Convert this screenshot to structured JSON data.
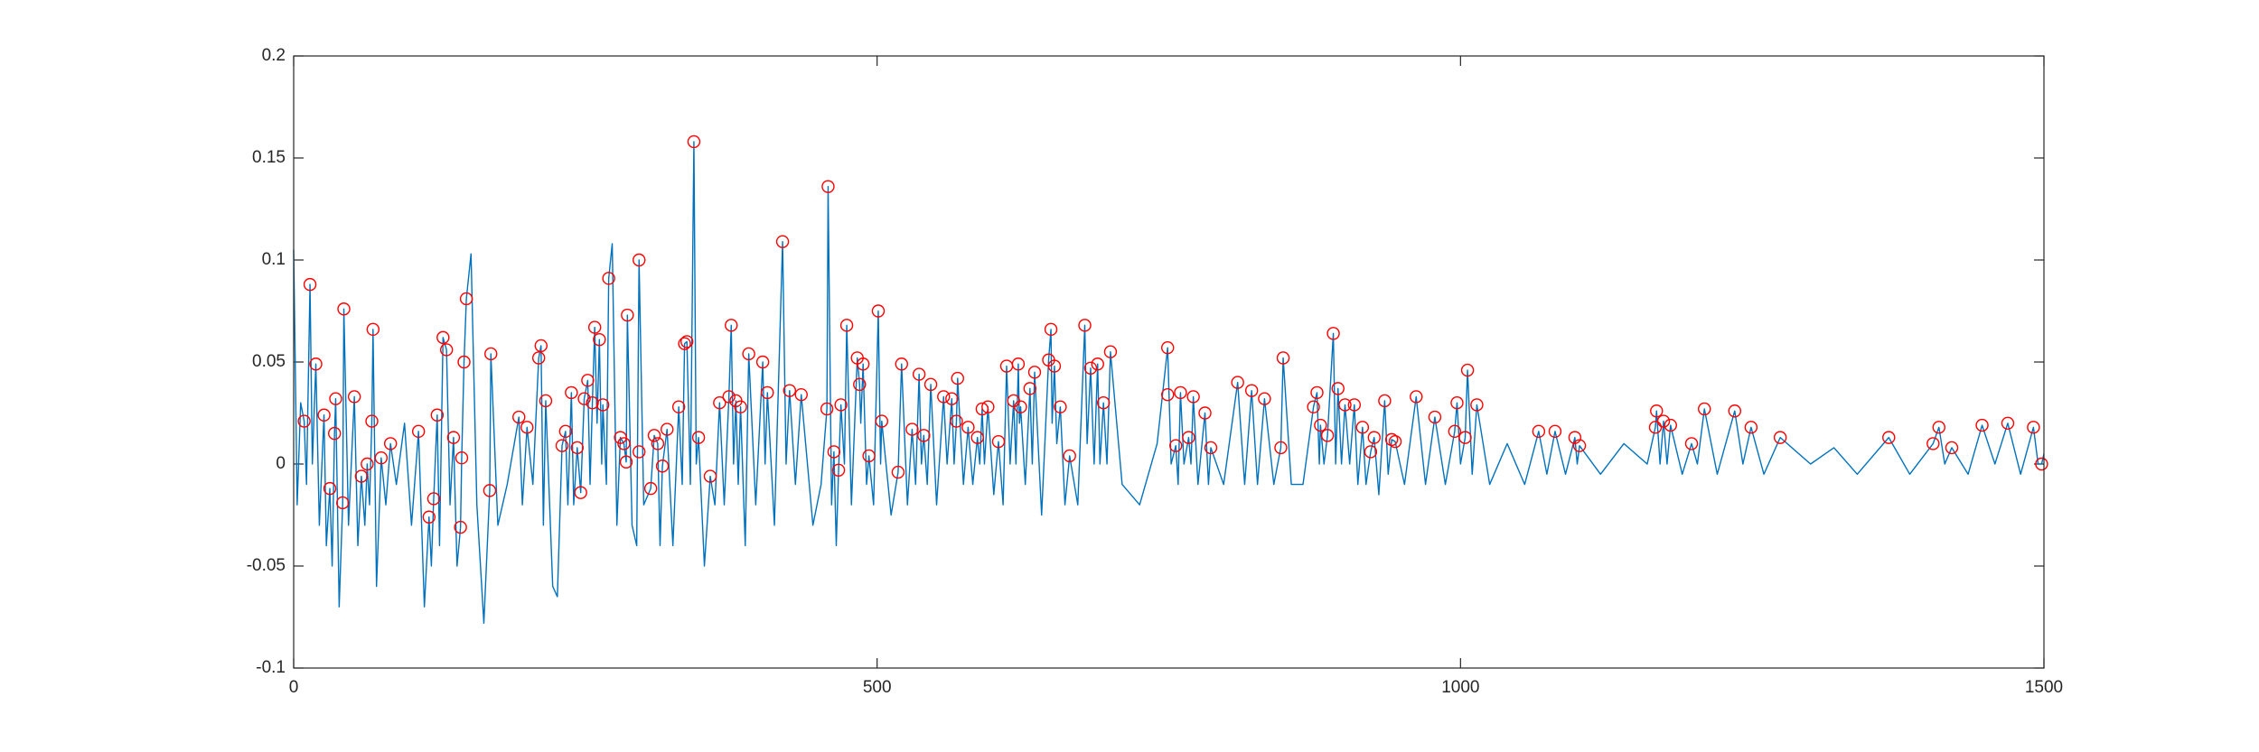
{
  "chart_data": {
    "type": "line",
    "xlim": [
      0,
      1500
    ],
    "ylim": [
      -0.1,
      0.2
    ],
    "xticks": [
      0,
      500,
      1000,
      1500
    ],
    "yticks": [
      -0.1,
      -0.05,
      0,
      0.05,
      0.1,
      0.15,
      0.2
    ],
    "grid": false,
    "series": [
      {
        "color": "#0072bd",
        "marker": "none",
        "x": [
          0,
          3,
          6,
          9,
          11,
          14,
          16,
          19,
          22,
          26,
          28,
          31,
          33,
          35,
          36,
          39,
          42,
          43,
          47,
          52,
          55,
          58,
          61,
          63,
          65,
          67,
          68,
          71,
          75,
          79,
          83,
          88,
          95,
          101,
          107,
          112,
          116,
          118,
          120,
          123,
          125,
          128,
          131,
          134,
          137,
          140,
          143,
          144,
          146,
          148,
          152,
          157,
          163,
          168,
          169,
          175,
          183,
          193,
          196,
          200,
          205,
          210,
          212,
          214,
          216,
          222,
          226,
          230,
          233,
          235,
          238,
          240,
          243,
          246,
          249,
          252,
          254,
          256,
          258,
          260,
          262,
          264,
          265,
          268,
          270,
          273,
          277,
          280,
          283,
          285,
          286,
          290,
          294,
          296,
          300,
          306,
          309,
          312,
          314,
          316,
          320,
          325,
          330,
          333,
          335,
          337,
          340,
          343,
          345,
          347,
          352,
          357,
          361,
          365,
          369,
          373,
          375,
          377,
          379,
          381,
          383,
          387,
          390,
          396,
          402,
          404,
          406,
          412,
          419,
          422,
          425,
          430,
          435,
          445,
          452,
          457,
          458,
          461,
          463,
          465,
          467,
          469,
          472,
          474,
          478,
          483,
          485,
          486,
          488,
          491,
          493,
          497,
          501,
          503,
          504,
          512,
          518,
          521,
          526,
          530,
          533,
          536,
          538,
          540,
          543,
          546,
          551,
          557,
          560,
          564,
          566,
          568,
          569,
          574,
          578,
          582,
          586,
          588,
          590,
          592,
          595,
          600,
          604,
          608,
          611,
          614,
          617,
          619,
          621,
          622,
          623,
          627,
          631,
          633,
          635,
          641,
          647,
          649,
          650,
          652,
          654,
          657,
          661,
          665,
          672,
          678,
          680,
          683,
          686,
          689,
          691,
          694,
          697,
          700,
          710,
          725,
          740,
          749,
          752,
          756,
          758,
          760,
          763,
          767,
          769,
          771,
          775,
          781,
          784,
          786,
          797,
          809,
          815,
          821,
          826,
          832,
          840,
          846,
          848,
          855,
          865,
          874,
          877,
          879,
          880,
          883,
          886,
          891,
          893,
          895,
          898,
          901,
          905,
          909,
          912,
          916,
          919,
          923,
          926,
          930,
          935,
          938,
          941,
          944,
          952,
          962,
          970,
          978,
          987,
          995,
          997,
          1000,
          1004,
          1006,
          1010,
          1014,
          1025,
          1040,
          1055,
          1067,
          1074,
          1081,
          1090,
          1098,
          1100,
          1102,
          1120,
          1140,
          1160,
          1167,
          1168,
          1171,
          1174,
          1177,
          1180,
          1190,
          1198,
          1203,
          1209,
          1220,
          1235,
          1242,
          1249,
          1260,
          1274,
          1300,
          1320,
          1340,
          1367,
          1385,
          1405,
          1410,
          1415,
          1421,
          1435,
          1447,
          1458,
          1469,
          1480,
          1491,
          1495,
          1498,
          1500
        ],
        "values": [
          0.105,
          -0.02,
          0.03,
          0.021,
          -0.01,
          0.088,
          0,
          0.049,
          -0.03,
          0.024,
          -0.04,
          -0.012,
          -0.05,
          0.015,
          0.032,
          -0.07,
          -0.019,
          0.076,
          -0.03,
          0.033,
          -0.04,
          -0.006,
          -0.03,
          0,
          -0.02,
          0.021,
          0.066,
          -0.06,
          0.003,
          -0.02,
          0.01,
          -0.01,
          0.02,
          -0.03,
          0.016,
          -0.07,
          -0.026,
          -0.05,
          -0.017,
          0.024,
          -0.04,
          0.062,
          0.056,
          -0.02,
          0.013,
          -0.05,
          -0.031,
          0.003,
          0.05,
          0.081,
          0.103,
          -0.02,
          -0.078,
          -0.013,
          0.054,
          -0.03,
          -0.01,
          0.023,
          -0.02,
          0.018,
          -0.01,
          0.052,
          0.058,
          -0.03,
          0.031,
          -0.06,
          -0.065,
          0.009,
          0.016,
          -0.02,
          0.035,
          -0.02,
          0.008,
          -0.014,
          0.032,
          0.041,
          -0.01,
          0.03,
          0.067,
          0.02,
          0.061,
          0,
          0.029,
          -0.01,
          0.091,
          0.108,
          -0.03,
          0.013,
          0.01,
          0.001,
          0.073,
          -0.03,
          -0.04,
          0.1,
          -0.02,
          -0.012,
          0.014,
          0.01,
          -0.04,
          -0.001,
          0.017,
          -0.04,
          0.028,
          -0.01,
          0.059,
          0.06,
          -0.01,
          0.158,
          0,
          0.013,
          -0.05,
          -0.006,
          -0.02,
          0.03,
          -0.02,
          0.033,
          0.068,
          0,
          0.031,
          -0.01,
          0.028,
          -0.04,
          0.054,
          -0.02,
          0.05,
          0,
          0.035,
          -0.03,
          0.109,
          0,
          0.036,
          -0.01,
          0.034,
          -0.03,
          -0.01,
          0.027,
          0.136,
          -0.02,
          0.006,
          -0.04,
          -0.003,
          0.029,
          0,
          0.068,
          -0.02,
          0.052,
          0.039,
          0.02,
          0.049,
          -0.01,
          0.004,
          -0.02,
          0.075,
          0,
          0.021,
          -0.025,
          -0.004,
          0.049,
          -0.02,
          0.017,
          -0.01,
          0.044,
          0,
          0.014,
          -0.01,
          0.039,
          -0.02,
          0.033,
          0,
          0.032,
          0,
          0.021,
          0.042,
          -0.01,
          0.018,
          -0.01,
          0.013,
          0,
          0.027,
          0,
          0.028,
          -0.015,
          0.011,
          -0.02,
          0.048,
          0,
          0.031,
          0,
          0.049,
          0.02,
          0.028,
          -0.01,
          0.037,
          0,
          0.045,
          -0.025,
          0.051,
          0.066,
          0.02,
          0.048,
          0.01,
          0.028,
          -0.02,
          0.004,
          -0.02,
          0.068,
          0.01,
          0.047,
          0,
          0.049,
          0,
          0.03,
          0,
          0.055,
          -0.01,
          -0.02,
          0.01,
          0.057,
          0,
          0.009,
          -0.01,
          0.035,
          0,
          0.013,
          0,
          0.033,
          -0.01,
          0.025,
          -0.01,
          0.008,
          -0.01,
          0.04,
          -0.01,
          0.036,
          -0.01,
          0.032,
          -0.01,
          0.008,
          0.052,
          -0.01,
          -0.01,
          0.028,
          0.035,
          0,
          0.019,
          0,
          0.014,
          0.064,
          0,
          0.037,
          0,
          0.029,
          0,
          0.029,
          -0.01,
          0.018,
          -0.01,
          0.006,
          0.013,
          -0.015,
          0.031,
          -0.005,
          0.012,
          0.011,
          -0.01,
          0.033,
          -0.01,
          0.023,
          -0.01,
          0.016,
          0.03,
          0,
          0.013,
          0.046,
          -0.005,
          0.029,
          -0.01,
          0.01,
          -0.01,
          0.016,
          -0.005,
          0.016,
          -0.005,
          0.013,
          0,
          0.009,
          -0.005,
          0.01,
          0,
          0.018,
          0.026,
          0,
          0.021,
          0,
          0.019,
          -0.005,
          0.01,
          0,
          0.027,
          -0.005,
          0.026,
          0,
          0.018,
          -0.005,
          0.013,
          0,
          0.008,
          -0.005,
          0.013,
          -0.005,
          0.01,
          0.018,
          0,
          0.008,
          -0.005,
          0.019,
          0,
          0.02,
          -0.005,
          0.018,
          0,
          0,
          0.005
        ]
      },
      {
        "color": "#ff0000",
        "marker": "circle",
        "x": [
          9,
          14,
          19,
          26,
          31,
          35,
          36,
          42,
          43,
          52,
          58,
          63,
          67,
          68,
          75,
          83,
          107,
          116,
          120,
          123,
          128,
          131,
          137,
          143,
          144,
          146,
          148,
          168,
          169,
          193,
          200,
          210,
          212,
          216,
          230,
          233,
          238,
          243,
          246,
          249,
          252,
          256,
          258,
          262,
          265,
          270,
          280,
          283,
          285,
          286,
          296,
          296,
          306,
          309,
          312,
          316,
          320,
          330,
          335,
          337,
          343,
          347,
          357,
          365,
          373,
          375,
          379,
          383,
          390,
          402,
          406,
          419,
          425,
          435,
          457,
          458,
          463,
          467,
          469,
          474,
          483,
          485,
          488,
          493,
          501,
          504,
          518,
          521,
          530,
          536,
          540,
          546,
          557,
          564,
          568,
          569,
          578,
          586,
          590,
          595,
          604,
          611,
          617,
          621,
          623,
          631,
          635,
          647,
          649,
          652,
          657,
          665,
          678,
          683,
          689,
          694,
          700,
          749,
          749,
          756,
          760,
          767,
          771,
          781,
          786,
          809,
          821,
          832,
          846,
          848,
          874,
          877,
          880,
          886,
          891,
          895,
          901,
          909,
          916,
          923,
          926,
          935,
          941,
          944,
          962,
          978,
          995,
          997,
          1004,
          1006,
          1014,
          1067,
          1081,
          1098,
          1102,
          1167,
          1168,
          1174,
          1180,
          1198,
          1209,
          1235,
          1249,
          1274,
          1367,
          1405,
          1410,
          1421,
          1447,
          1469,
          1491,
          1498
        ],
        "values": [
          0.021,
          0.088,
          0.049,
          0.024,
          -0.012,
          0.015,
          0.032,
          -0.019,
          0.076,
          0.033,
          -0.006,
          0,
          0.021,
          0.066,
          0.003,
          0.01,
          0.016,
          -0.026,
          -0.017,
          0.024,
          0.062,
          0.056,
          0.013,
          -0.031,
          0.003,
          0.05,
          0.081,
          -0.013,
          0.054,
          0.023,
          0.018,
          0.052,
          0.058,
          0.031,
          0.009,
          0.016,
          0.035,
          0.008,
          -0.014,
          0.032,
          0.041,
          0.03,
          0.067,
          0.061,
          0.029,
          0.091,
          0.013,
          0.01,
          0.001,
          0.073,
          0.1,
          0.006,
          -0.012,
          0.014,
          0.01,
          -0.001,
          0.017,
          0.028,
          0.059,
          0.06,
          0.158,
          0.013,
          -0.006,
          0.03,
          0.033,
          0.068,
          0.031,
          0.028,
          0.054,
          0.05,
          0.035,
          0.109,
          0.036,
          0.034,
          0.027,
          0.136,
          0.006,
          -0.003,
          0.029,
          0.068,
          0.052,
          0.039,
          0.049,
          0.004,
          0.075,
          0.021,
          -0.004,
          0.049,
          0.017,
          0.044,
          0.014,
          0.039,
          0.033,
          0.032,
          0.021,
          0.042,
          0.018,
          0.013,
          0.027,
          0.028,
          0.011,
          0.048,
          0.031,
          0.049,
          0.028,
          0.037,
          0.045,
          0.051,
          0.066,
          0.048,
          0.028,
          0.004,
          0.068,
          0.047,
          0.049,
          0.03,
          0.055,
          0.057,
          0.034,
          0.009,
          0.035,
          0.013,
          0.033,
          0.025,
          0.008,
          0.04,
          0.036,
          0.032,
          0.008,
          0.052,
          0.028,
          0.035,
          0.019,
          0.014,
          0.064,
          0.037,
          0.029,
          0.029,
          0.018,
          0.006,
          0.013,
          0.031,
          0.012,
          0.011,
          0.033,
          0.023,
          0.016,
          0.03,
          0.013,
          0.046,
          0.029,
          0.016,
          0.016,
          0.013,
          0.009,
          0.018,
          0.026,
          0.021,
          0.019,
          0.01,
          0.027,
          0.026,
          0.018,
          0.013,
          0.013,
          0.01,
          0.018,
          0.008,
          0.019,
          0.02,
          0.018,
          0
        ]
      }
    ]
  }
}
